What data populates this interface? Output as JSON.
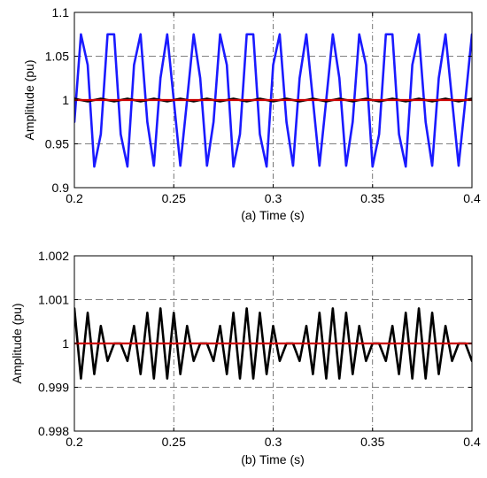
{
  "chart_data": [
    {
      "type": "line",
      "title": "",
      "xlabel": "(a) Time (s)",
      "ylabel": "Amplitude (pu)",
      "xlim": [
        0.2,
        0.4
      ],
      "ylim": [
        0.9,
        1.1
      ],
      "xticks": [
        0.2,
        0.25,
        0.3,
        0.35,
        0.4
      ],
      "xtick_labels": [
        "0.2",
        "0.25",
        "0.3",
        "0.35",
        "0.4"
      ],
      "yticks": [
        0.9,
        0.95,
        1,
        1.05,
        1.1
      ],
      "ytick_labels": [
        "0.9",
        "0.95",
        "1",
        "1.05",
        "1.1"
      ],
      "grid": true,
      "legend": "none",
      "series": [
        {
          "color": "#1a1aff",
          "x": [
            0.2,
            0.2033,
            0.2067,
            0.21,
            0.2133,
            0.2167,
            0.22,
            0.2233,
            0.2267,
            0.23,
            0.2333,
            0.2367,
            0.24,
            0.2433,
            0.2467,
            0.25,
            0.2533,
            0.2567,
            0.26,
            0.2633,
            0.2667,
            0.27,
            0.2733,
            0.2767,
            0.28,
            0.2833,
            0.2867,
            0.29,
            0.2933,
            0.2967,
            0.3,
            0.3033,
            0.3067,
            0.31,
            0.3133,
            0.3167,
            0.32,
            0.3233,
            0.3267,
            0.33,
            0.3333,
            0.3367,
            0.34,
            0.3433,
            0.3467,
            0.35,
            0.3533,
            0.3567,
            0.36,
            0.3633,
            0.3667,
            0.37,
            0.3733,
            0.3767,
            0.38,
            0.3833,
            0.3867,
            0.39,
            0.3933,
            0.3967,
            0.4
          ],
          "y": [
            0.975,
            1.075,
            1.04,
            0.924,
            0.961,
            1.075,
            1.075,
            0.961,
            0.924,
            1.04,
            1.075,
            0.975,
            0.925,
            1.025,
            1.075,
            1.0,
            0.925,
            1.0,
            1.075,
            1.025,
            0.925,
            0.975,
            1.075,
            1.04,
            0.924,
            0.961,
            1.075,
            1.075,
            0.961,
            0.924,
            1.04,
            1.075,
            0.975,
            0.925,
            1.025,
            1.075,
            1.0,
            0.925,
            1.0,
            1.075,
            1.025,
            0.925,
            0.975,
            1.075,
            1.04,
            0.924,
            0.961,
            1.075,
            1.075,
            0.961,
            0.924,
            1.04,
            1.075,
            0.975,
            0.925,
            1.025,
            1.075,
            1.0,
            0.925,
            1.0,
            1.075
          ]
        },
        {
          "color": "#000000",
          "x": [
            0.2,
            0.2033,
            0.2067,
            0.21,
            0.2133,
            0.2167,
            0.22,
            0.2233,
            0.2267,
            0.23,
            0.2333,
            0.2367,
            0.24,
            0.2433,
            0.2467,
            0.25,
            0.2533,
            0.2567,
            0.26,
            0.2633,
            0.2667,
            0.27,
            0.2733,
            0.2767,
            0.28,
            0.2833,
            0.2867,
            0.29,
            0.2933,
            0.2967,
            0.3,
            0.3033,
            0.3067,
            0.31,
            0.3133,
            0.3167,
            0.32,
            0.3233,
            0.3267,
            0.33,
            0.3333,
            0.3367,
            0.34,
            0.3433,
            0.3467,
            0.35,
            0.3533,
            0.3567,
            0.36,
            0.3633,
            0.3667,
            0.37,
            0.3733,
            0.3767,
            0.38,
            0.3833,
            0.3867,
            0.39,
            0.3933,
            0.3967,
            0.4
          ],
          "y": [
            1.0015,
            1.0,
            0.9985,
            1.0,
            1.0015,
            1.0,
            0.9985,
            1.0,
            1.0015,
            1.0,
            0.9985,
            1.0,
            1.0015,
            1.0,
            0.9985,
            1.0,
            1.0015,
            1.0,
            0.9985,
            1.0,
            1.0015,
            1.0,
            0.9985,
            1.0,
            1.0015,
            1.0,
            0.9985,
            1.0,
            1.0015,
            1.0,
            0.9985,
            1.0,
            1.0015,
            1.0,
            0.9985,
            1.0,
            1.0015,
            1.0,
            0.9985,
            1.0,
            1.0015,
            1.0,
            0.9985,
            1.0,
            1.0015,
            1.0,
            0.9985,
            1.0,
            1.0015,
            1.0,
            0.9985,
            1.0,
            1.0015,
            1.0,
            0.9985,
            1.0,
            1.0015,
            1.0,
            0.9985,
            1.0,
            1.0015
          ]
        },
        {
          "color": "#cc0000",
          "x": [
            0.2,
            0.4
          ],
          "y": [
            1.0,
            1.0
          ]
        }
      ]
    },
    {
      "type": "line",
      "title": "",
      "xlabel": "(b) Time (s)",
      "ylabel": "Amplitude (pu)",
      "xlim": [
        0.2,
        0.4
      ],
      "ylim": [
        0.998,
        1.002
      ],
      "xticks": [
        0.2,
        0.25,
        0.3,
        0.35,
        0.4
      ],
      "xtick_labels": [
        "0.2",
        "0.25",
        "0.3",
        "0.35",
        "0.4"
      ],
      "yticks": [
        0.998,
        0.999,
        1,
        1.001,
        1.002
      ],
      "ytick_labels": [
        "0.998",
        "0.999",
        "1",
        "1.001",
        "1.002"
      ],
      "grid": true,
      "legend": "none",
      "series": [
        {
          "color": "#000000",
          "x": [
            0.2,
            0.2033,
            0.2067,
            0.21,
            0.2133,
            0.2167,
            0.22,
            0.2233,
            0.2267,
            0.23,
            0.2333,
            0.2367,
            0.24,
            0.2433,
            0.2467,
            0.25,
            0.2533,
            0.2567,
            0.26,
            0.2633,
            0.2667,
            0.27,
            0.2733,
            0.2767,
            0.28,
            0.2833,
            0.2867,
            0.29,
            0.2933,
            0.2967,
            0.3,
            0.3033,
            0.3067,
            0.31,
            0.3133,
            0.3167,
            0.32,
            0.3233,
            0.3267,
            0.33,
            0.3333,
            0.3367,
            0.34,
            0.3433,
            0.3467,
            0.35,
            0.3533,
            0.3567,
            0.36,
            0.3633,
            0.3667,
            0.37,
            0.3733,
            0.3767,
            0.38,
            0.3833,
            0.3867,
            0.39,
            0.3933,
            0.3967,
            0.4
          ],
          "y": [
            1.0008,
            0.9992,
            1.0007,
            0.9993,
            1.0004,
            0.9996,
            1.0,
            1.0,
            0.9996,
            1.0004,
            0.9993,
            1.0007,
            0.9992,
            1.0008,
            0.9992,
            1.0007,
            0.9993,
            1.0004,
            0.9996,
            1.0,
            1.0,
            0.9996,
            1.0004,
            0.9993,
            1.0007,
            0.9992,
            1.0008,
            0.9992,
            1.0007,
            0.9993,
            1.0004,
            0.9996,
            1.0,
            1.0,
            0.9996,
            1.0004,
            0.9993,
            1.0007,
            0.9992,
            1.0008,
            0.9992,
            1.0007,
            0.9993,
            1.0004,
            0.9996,
            1.0,
            1.0,
            0.9996,
            1.0004,
            0.9993,
            1.0007,
            0.9992,
            1.0008,
            0.9992,
            1.0007,
            0.9993,
            1.0004,
            0.9996,
            1.0,
            1.0,
            0.9996
          ]
        },
        {
          "color": "#cc0000",
          "x": [
            0.2,
            0.4
          ],
          "y": [
            1.0,
            1.0
          ]
        }
      ]
    }
  ]
}
